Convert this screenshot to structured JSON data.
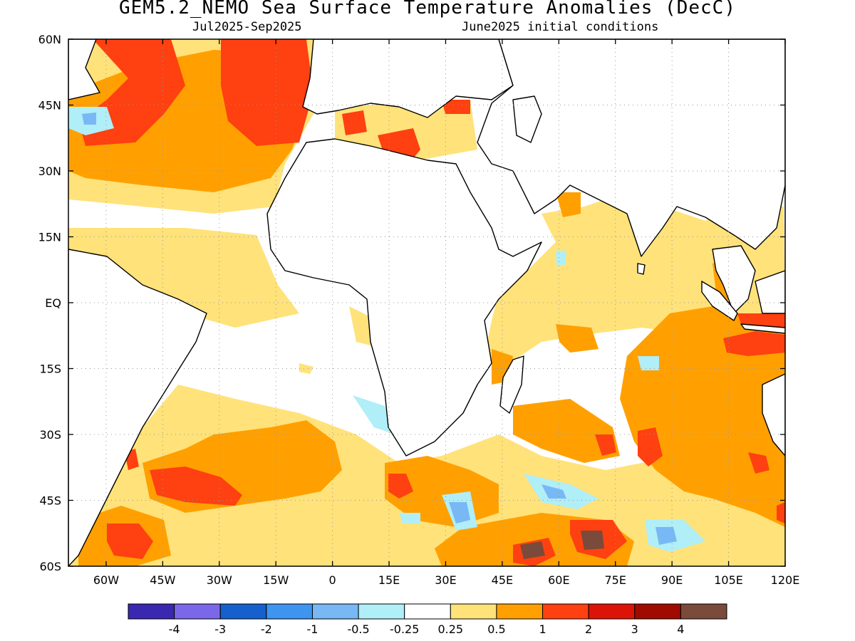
{
  "title": "GEM5.2_NEMO Sea Surface Temperature Anomalies (DecC)",
  "subtitle_left": "Jul2025-Sep2025",
  "subtitle_right": "June2025 initial conditions",
  "map": {
    "lon_range": [
      -70,
      120
    ],
    "lat_range": [
      -60,
      60
    ],
    "lat_ticks": [
      {
        "value": 60,
        "label": "60N"
      },
      {
        "value": 45,
        "label": "45N"
      },
      {
        "value": 30,
        "label": "30N"
      },
      {
        "value": 15,
        "label": "15N"
      },
      {
        "value": 0,
        "label": "EQ"
      },
      {
        "value": -15,
        "label": "15S"
      },
      {
        "value": -30,
        "label": "30S"
      },
      {
        "value": -45,
        "label": "45S"
      },
      {
        "value": -60,
        "label": "60S"
      }
    ],
    "lon_ticks": [
      {
        "value": -60,
        "label": "60W"
      },
      {
        "value": -45,
        "label": "45W"
      },
      {
        "value": -30,
        "label": "30W"
      },
      {
        "value": -15,
        "label": "15W"
      },
      {
        "value": 0,
        "label": "0"
      },
      {
        "value": 15,
        "label": "15E"
      },
      {
        "value": 30,
        "label": "30E"
      },
      {
        "value": 45,
        "label": "45E"
      },
      {
        "value": 60,
        "label": "60E"
      },
      {
        "value": 75,
        "label": "75E"
      },
      {
        "value": 90,
        "label": "90E"
      },
      {
        "value": 105,
        "label": "105E"
      },
      {
        "value": 120,
        "label": "120E"
      }
    ],
    "grid": "dotted"
  },
  "colorbar": {
    "colors": [
      "#3a28b0",
      "#7b68e8",
      "#1560cc",
      "#3d95f0",
      "#78b8f5",
      "#b0eef8",
      "#ffffff",
      "#ffe27a",
      "#ffa000",
      "#ff4010",
      "#dc1408",
      "#a00a00",
      "#7a4a3a"
    ],
    "labels": [
      "-4",
      "-3",
      "-2",
      "-1",
      "-0.5",
      "-0.25",
      "0.25",
      "0.5",
      "1",
      "2",
      "3",
      "4"
    ]
  }
}
